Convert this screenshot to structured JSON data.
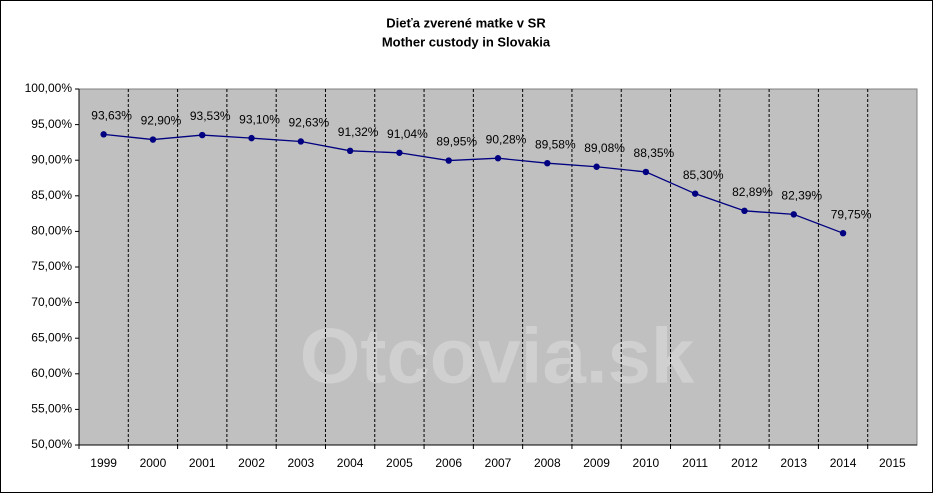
{
  "chart_data": {
    "type": "line",
    "title": "Dieťa zverené matke v SR",
    "subtitle": "Mother custody in Slovakia",
    "watermark": "Otcovia.sk",
    "categories": [
      "1999",
      "2000",
      "2001",
      "2002",
      "2003",
      "2004",
      "2005",
      "2006",
      "2007",
      "2008",
      "2009",
      "2010",
      "2011",
      "2012",
      "2013",
      "2014",
      "2015"
    ],
    "series": [
      {
        "name": "Mother custody",
        "color": "#000080",
        "values": [
          93.63,
          92.9,
          93.53,
          93.1,
          92.63,
          91.32,
          91.04,
          89.95,
          90.28,
          89.58,
          89.08,
          88.35,
          85.3,
          82.89,
          82.39,
          79.75,
          null
        ],
        "value_labels": [
          "93,63%",
          "92,90%",
          "93,53%",
          "93,10%",
          "92,63%",
          "91,32%",
          "91,04%",
          "89,95%",
          "90,28%",
          "89,58%",
          "89,08%",
          "88,35%",
          "85,30%",
          "82,89%",
          "82,39%",
          "79,75%",
          null
        ]
      }
    ],
    "ylim": [
      50,
      100
    ],
    "yticks": [
      {
        "value": 50,
        "label": "50,00%"
      },
      {
        "value": 55,
        "label": "55,00%"
      },
      {
        "value": 60,
        "label": "60,00%"
      },
      {
        "value": 65,
        "label": "65,00%"
      },
      {
        "value": 70,
        "label": "70,00%"
      },
      {
        "value": 75,
        "label": "75,00%"
      },
      {
        "value": 80,
        "label": "80,00%"
      },
      {
        "value": 85,
        "label": "85,00%"
      },
      {
        "value": 90,
        "label": "90,00%"
      },
      {
        "value": 95,
        "label": "95,00%"
      },
      {
        "value": 100,
        "label": "100,00%"
      }
    ],
    "plot_background": "#c0c0c0"
  }
}
